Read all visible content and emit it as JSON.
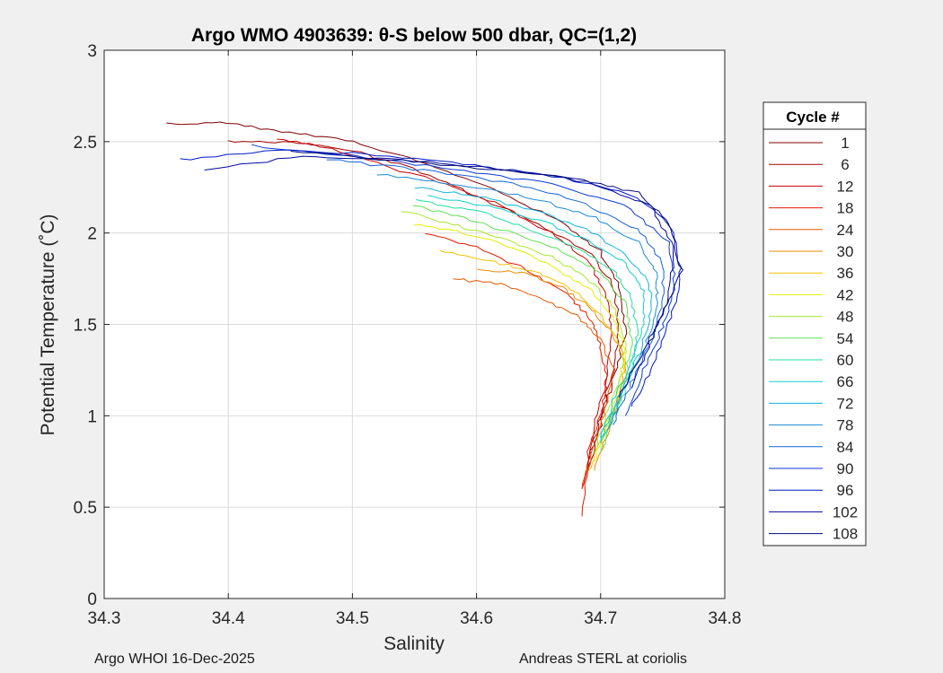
{
  "chart_data": {
    "type": "line",
    "title": "Argo WMO 4903639: θ-S below 500 dbar,  QC=(1,2)",
    "xlabel": "Salinity",
    "ylabel": "Potential Temperature (˚C)",
    "xlim": [
      34.3,
      34.8
    ],
    "ylim": [
      0,
      3
    ],
    "xticks": [
      "34.3",
      "34.4",
      "34.5",
      "34.6",
      "34.7",
      "34.8"
    ],
    "yticks": [
      "0",
      "0.5",
      "1",
      "1.5",
      "2",
      "2.5",
      "3"
    ],
    "grid": true,
    "legend": {
      "title": "Cycle #",
      "placement": "right-outside",
      "entries": [
        {
          "label": "1",
          "color": "#800000"
        },
        {
          "label": "6",
          "color": "#a50000"
        },
        {
          "label": "12",
          "color": "#c80000"
        },
        {
          "label": "18",
          "color": "#e41800"
        },
        {
          "label": "24",
          "color": "#e85a00"
        },
        {
          "label": "30",
          "color": "#ef8a00"
        },
        {
          "label": "36",
          "color": "#f2c200"
        },
        {
          "label": "42",
          "color": "#e6f000"
        },
        {
          "label": "48",
          "color": "#a8e830"
        },
        {
          "label": "54",
          "color": "#5ce050"
        },
        {
          "label": "60",
          "color": "#20e09a"
        },
        {
          "label": "66",
          "color": "#10d0d0"
        },
        {
          "label": "72",
          "color": "#10b4e0"
        },
        {
          "label": "78",
          "color": "#1a8cd8"
        },
        {
          "label": "84",
          "color": "#1464d8"
        },
        {
          "label": "90",
          "color": "#0a3ad8"
        },
        {
          "label": "96",
          "color": "#0018c8"
        },
        {
          "label": "102",
          "color": "#00089c"
        },
        {
          "label": "108",
          "color": "#000878"
        }
      ]
    },
    "series": [
      {
        "color": "#800000",
        "x": [
          34.35,
          34.4,
          34.45,
          34.5,
          34.56,
          34.62,
          34.67,
          34.7,
          34.715,
          34.72,
          34.71,
          34.7,
          34.69
        ],
        "y": [
          2.6,
          2.6,
          2.55,
          2.5,
          2.38,
          2.22,
          2.05,
          1.9,
          1.7,
          1.45,
          1.2,
          0.95,
          0.7
        ]
      },
      {
        "color": "#a50000",
        "x": [
          34.4,
          34.45,
          34.5,
          34.55,
          34.6,
          34.65,
          34.69,
          34.71,
          34.715,
          34.71,
          34.7,
          34.69
        ],
        "y": [
          2.5,
          2.5,
          2.45,
          2.35,
          2.2,
          2.05,
          1.9,
          1.72,
          1.5,
          1.25,
          1.0,
          0.75
        ]
      },
      {
        "color": "#c80000",
        "x": [
          34.44,
          34.48,
          34.52,
          34.57,
          34.62,
          34.66,
          34.69,
          34.705,
          34.71,
          34.705,
          34.695,
          34.685
        ],
        "y": [
          2.52,
          2.47,
          2.38,
          2.28,
          2.15,
          2.0,
          1.85,
          1.65,
          1.45,
          1.2,
          0.95,
          0.6
        ]
      },
      {
        "color": "#e41800",
        "x": [
          34.56,
          34.6,
          34.64,
          34.67,
          34.69,
          34.7,
          34.705,
          34.7,
          34.69,
          34.685
        ],
        "y": [
          2.0,
          1.92,
          1.8,
          1.68,
          1.55,
          1.4,
          1.2,
          1.0,
          0.8,
          0.45
        ]
      },
      {
        "color": "#e85a00",
        "x": [
          34.58,
          34.62,
          34.65,
          34.68,
          34.7,
          34.71,
          34.705,
          34.695,
          34.685
        ],
        "y": [
          1.75,
          1.72,
          1.65,
          1.55,
          1.42,
          1.25,
          1.05,
          0.85,
          0.6
        ]
      },
      {
        "color": "#ef8a00",
        "x": [
          34.6,
          34.64,
          34.67,
          34.69,
          34.71,
          34.72,
          34.715,
          34.705,
          34.695
        ],
        "y": [
          1.8,
          1.78,
          1.7,
          1.6,
          1.45,
          1.3,
          1.1,
          0.9,
          0.7
        ]
      },
      {
        "color": "#f2c200",
        "x": [
          34.57,
          34.61,
          34.65,
          34.68,
          34.7,
          34.715,
          34.72,
          34.71,
          34.7,
          34.69
        ],
        "y": [
          1.9,
          1.85,
          1.78,
          1.68,
          1.55,
          1.4,
          1.2,
          1.0,
          0.85,
          0.7
        ]
      },
      {
        "color": "#e6f000",
        "x": [
          34.55,
          34.59,
          34.63,
          34.66,
          34.69,
          34.71,
          34.72,
          34.715,
          34.705,
          34.695
        ],
        "y": [
          2.05,
          2.0,
          1.92,
          1.82,
          1.7,
          1.55,
          1.35,
          1.15,
          0.95,
          0.75
        ]
      },
      {
        "color": "#a8e830",
        "x": [
          34.54,
          34.58,
          34.62,
          34.66,
          34.69,
          34.71,
          34.72,
          34.715,
          34.705,
          34.695
        ],
        "y": [
          2.12,
          2.05,
          1.97,
          1.87,
          1.75,
          1.6,
          1.4,
          1.2,
          1.0,
          0.8
        ]
      },
      {
        "color": "#5ce050",
        "x": [
          34.55,
          34.59,
          34.63,
          34.67,
          34.7,
          34.72,
          34.725,
          34.72,
          34.71,
          34.7
        ],
        "y": [
          2.15,
          2.08,
          2.0,
          1.9,
          1.78,
          1.62,
          1.42,
          1.2,
          1.0,
          0.8
        ]
      },
      {
        "color": "#20e09a",
        "x": [
          34.55,
          34.6,
          34.64,
          34.68,
          34.71,
          34.725,
          34.73,
          34.725,
          34.715,
          34.7
        ],
        "y": [
          2.18,
          2.12,
          2.03,
          1.92,
          1.8,
          1.65,
          1.45,
          1.25,
          1.05,
          0.85
        ]
      },
      {
        "color": "#10d0d0",
        "x": [
          34.56,
          34.61,
          34.65,
          34.69,
          34.72,
          34.735,
          34.735,
          34.725,
          34.71,
          34.7
        ],
        "y": [
          2.2,
          2.15,
          2.07,
          1.96,
          1.83,
          1.68,
          1.5,
          1.3,
          1.08,
          0.85
        ]
      },
      {
        "color": "#10b4e0",
        "x": [
          34.55,
          34.6,
          34.65,
          34.69,
          34.72,
          34.74,
          34.74,
          34.73,
          34.715,
          34.7
        ],
        "y": [
          2.25,
          2.2,
          2.12,
          2.02,
          1.88,
          1.72,
          1.52,
          1.32,
          1.1,
          0.88
        ]
      },
      {
        "color": "#1a8cd8",
        "x": [
          34.52,
          34.58,
          34.64,
          34.69,
          34.73,
          34.745,
          34.745,
          34.735,
          34.72,
          34.705
        ],
        "y": [
          2.32,
          2.27,
          2.2,
          2.1,
          1.95,
          1.78,
          1.58,
          1.36,
          1.15,
          0.92
        ]
      },
      {
        "color": "#1464d8",
        "x": [
          34.48,
          34.55,
          34.62,
          34.68,
          34.73,
          34.75,
          34.75,
          34.74,
          34.725,
          34.71
        ],
        "y": [
          2.4,
          2.35,
          2.28,
          2.18,
          2.02,
          1.84,
          1.62,
          1.4,
          1.18,
          0.95
        ]
      },
      {
        "color": "#0a3ad8",
        "x": [
          34.42,
          34.5,
          34.58,
          34.66,
          34.72,
          34.755,
          34.76,
          34.75,
          34.735,
          34.72
        ],
        "y": [
          2.48,
          2.42,
          2.35,
          2.27,
          2.15,
          1.95,
          1.72,
          1.48,
          1.25,
          1.0
        ]
      },
      {
        "color": "#0018c8",
        "x": [
          34.36,
          34.44,
          34.52,
          34.6,
          34.67,
          34.73,
          34.76,
          34.765,
          34.755,
          34.74,
          34.725
        ],
        "y": [
          2.4,
          2.45,
          2.43,
          2.37,
          2.3,
          2.2,
          2.0,
          1.75,
          1.5,
          1.25,
          1.05
        ]
      },
      {
        "color": "#00089c",
        "x": [
          34.38,
          34.46,
          34.54,
          34.62,
          34.69,
          34.74,
          34.76,
          34.755,
          34.74,
          34.725
        ],
        "y": [
          2.35,
          2.42,
          2.4,
          2.35,
          2.28,
          2.15,
          1.92,
          1.65,
          1.4,
          1.15
        ]
      },
      {
        "color": "#000878",
        "x": [
          34.45,
          34.53,
          34.61,
          34.68,
          34.73,
          34.755,
          34.765,
          34.75,
          34.73,
          34.715
        ],
        "y": [
          2.45,
          2.4,
          2.35,
          2.3,
          2.22,
          2.05,
          1.8,
          1.55,
          1.3,
          1.1
        ]
      }
    ]
  },
  "footer": {
    "left": "Argo WHOI 16-Dec-2025",
    "right": "Andreas STERL at coriolis"
  }
}
